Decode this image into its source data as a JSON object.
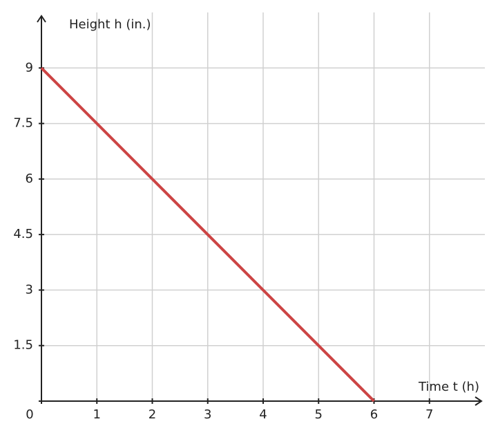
{
  "chart_data": {
    "type": "line",
    "x_label": "Time t (h)",
    "y_label": "Height h (in.)",
    "x": [
      0,
      6
    ],
    "series": [
      {
        "color": "#cc4444",
        "values": [
          9,
          0
        ]
      }
    ],
    "xlim": [
      0,
      8
    ],
    "ylim": [
      0,
      10.5
    ],
    "xticks": [
      0,
      1,
      2,
      3,
      4,
      5,
      6,
      7
    ],
    "yticks": [
      1.5,
      3,
      4.5,
      6,
      7.5,
      9
    ],
    "grid": true
  }
}
